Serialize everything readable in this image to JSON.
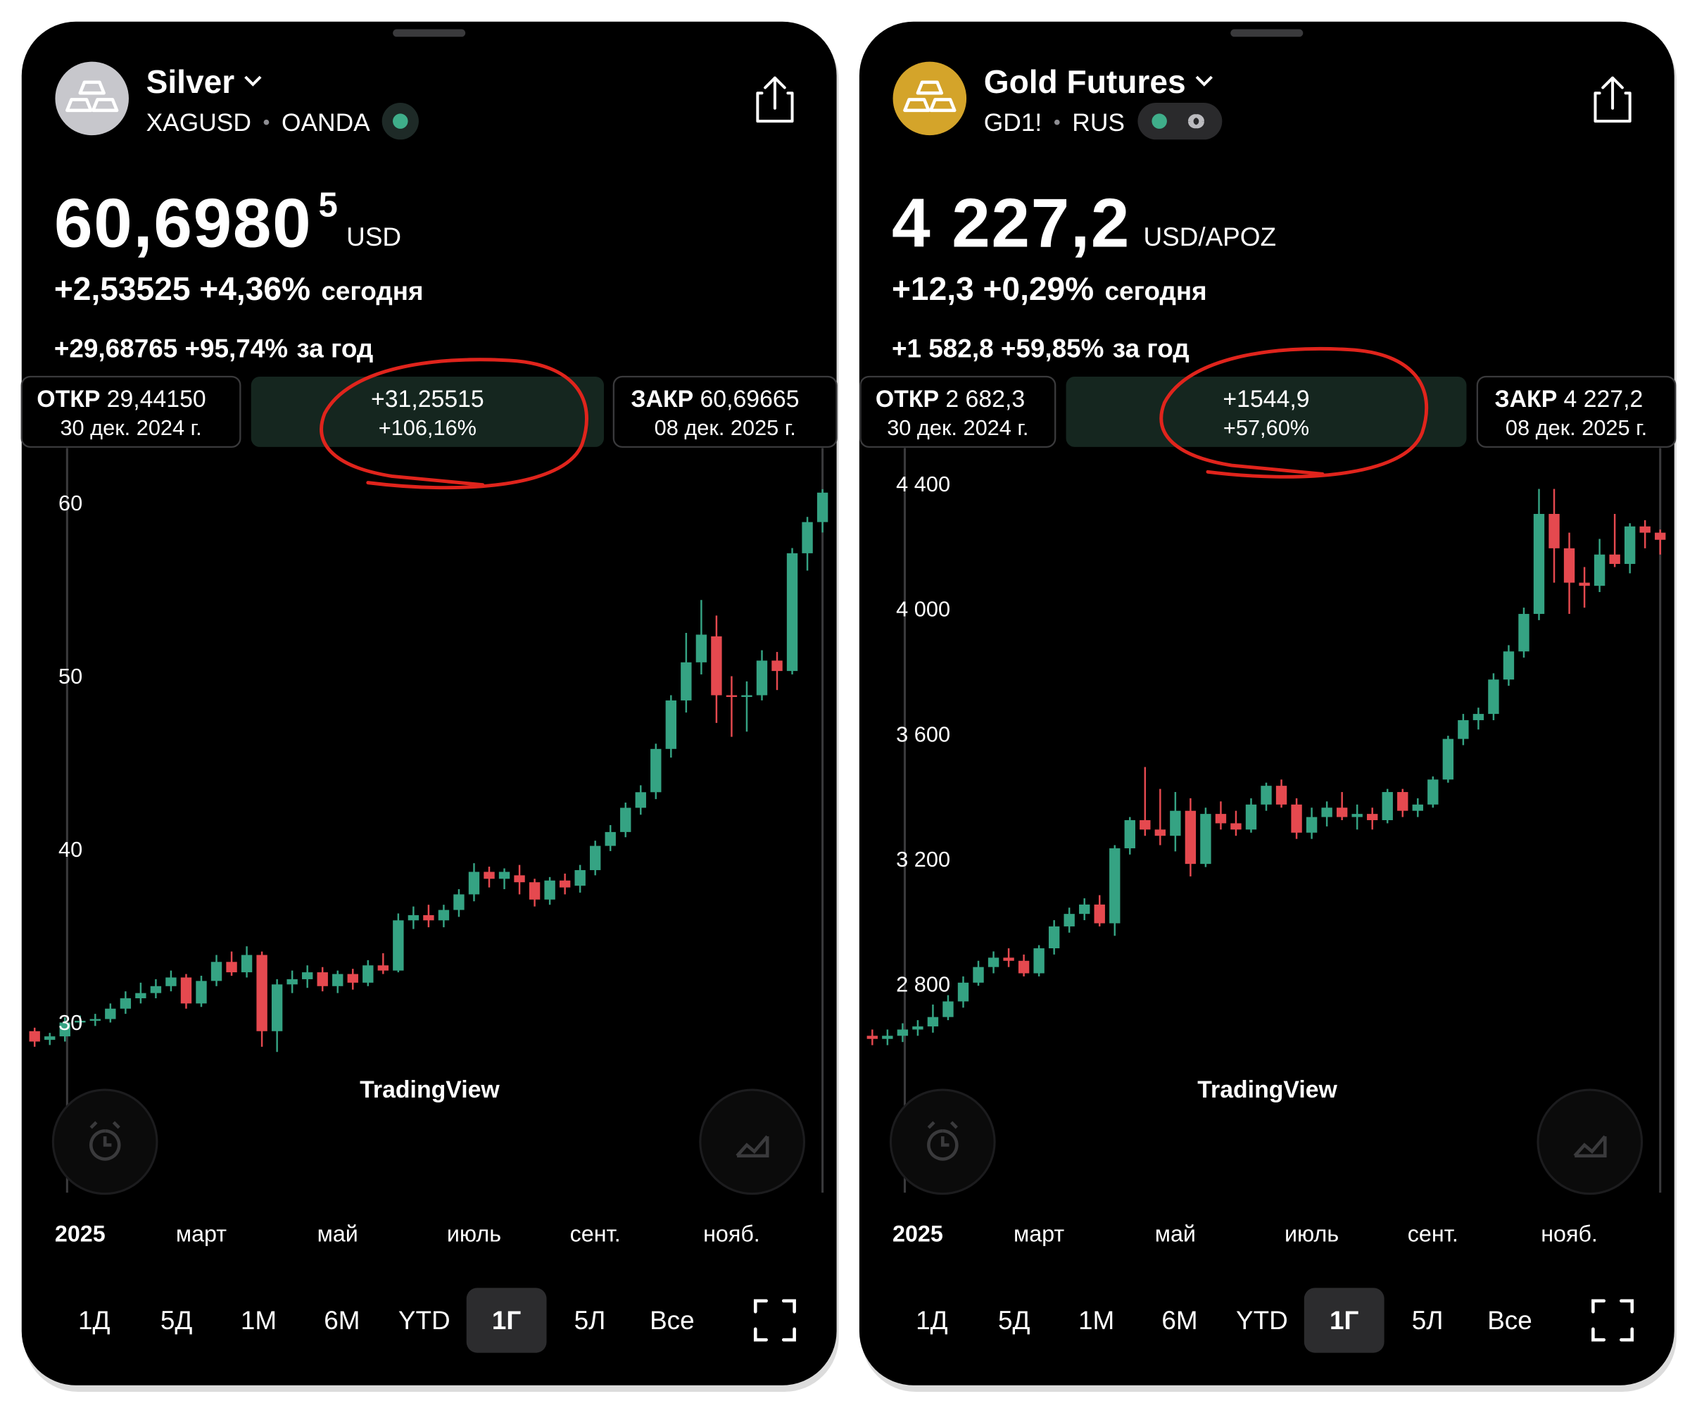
{
  "panels": [
    {
      "title": "Silver",
      "symbol": "XAGUSD",
      "exchange": "OANDA",
      "avatar_color": "#c7c7cc",
      "price": "60,6980",
      "price_sup": "5",
      "currency": "USD",
      "change_today": "+2,53525 +4,36%",
      "today_word": "сегодня",
      "change_year": "+29,68765 +95,74%",
      "year_word": "за год",
      "open_label": "ОТКР",
      "open_value": "29,44150",
      "open_date": "30 дек. 2024 г.",
      "delta": "+31,25515",
      "delta_pct": "+106,16%",
      "close_label": "ЗАКР",
      "close_value": "60,69665",
      "close_color": "#3fae8a",
      "close_date": "08 дек. 2025 г.",
      "watermark": "TradingView",
      "ranges": [
        {
          "label": "1Д"
        },
        {
          "label": "5Д"
        },
        {
          "label": "1М"
        },
        {
          "label": "6М"
        },
        {
          "label": "YTD"
        },
        {
          "label": "1Г",
          "selected": true
        },
        {
          "label": "5Л"
        },
        {
          "label": "Все"
        }
      ]
    },
    {
      "title": "Gold Futures",
      "symbol": "GD1!",
      "exchange": "RUS",
      "avatar_color": "#d4a42a",
      "price": "4 227,2",
      "currency": "USD/APOZ",
      "change_today": "+12,3 +0,29%",
      "today_word": "сегодня",
      "change_year": "+1 582,8 +59,85%",
      "year_word": "за год",
      "open_label": "ОТКР",
      "open_value": "2 682,3",
      "open_date": "30 дек. 2024 г.",
      "delta": "+1544,9",
      "delta_pct": "+57,60%",
      "close_label": "ЗАКР",
      "close_value": "4 227,2",
      "close_color": "#e5494f",
      "close_date": "08 дек. 2025 г.",
      "watermark": "TradingView",
      "ranges": [
        {
          "label": "1Д"
        },
        {
          "label": "5Д"
        },
        {
          "label": "1М"
        },
        {
          "label": "6М"
        },
        {
          "label": "YTD"
        },
        {
          "label": "1Г",
          "selected": true
        },
        {
          "label": "5Л"
        },
        {
          "label": "Все"
        }
      ]
    }
  ],
  "chart_data": [
    {
      "type": "candlestick",
      "up_color": "#35a383",
      "down_color": "#e5494f",
      "categories": [
        null,
        null,
        null,
        "2025",
        null,
        null,
        null,
        null,
        null,
        null,
        null,
        "март",
        null,
        null,
        null,
        null,
        null,
        null,
        null,
        null,
        "май",
        null,
        null,
        null,
        null,
        null,
        null,
        null,
        null,
        "июль",
        null,
        null,
        null,
        null,
        null,
        null,
        null,
        "сент.",
        null,
        null,
        null,
        null,
        null,
        null,
        null,
        null,
        "нояб.",
        null,
        null,
        null,
        null,
        null,
        null
      ],
      "open": [
        29.6,
        29.1,
        29.3,
        30.1,
        30.2,
        30.3,
        30.9,
        31.5,
        31.8,
        32.2,
        32.7,
        31.2,
        32.5,
        33.6,
        33.0,
        34.0,
        29.6,
        32.3,
        32.6,
        33.0,
        32.2,
        32.9,
        32.4,
        33.4,
        33.1,
        36.0,
        36.3,
        36.0,
        36.6,
        37.5,
        38.8,
        38.4,
        38.6,
        38.2,
        37.2,
        38.3,
        38.0,
        38.9,
        40.3,
        41.1,
        42.5,
        43.4,
        45.9,
        48.7,
        50.9,
        52.4,
        49.0,
        48.9,
        49.0,
        51.0,
        50.4,
        57.2,
        59.0
      ],
      "high": [
        29.8,
        29.5,
        30.4,
        30.5,
        30.6,
        31.2,
        31.9,
        32.4,
        32.6,
        33.1,
        32.9,
        32.8,
        34.0,
        34.2,
        34.5,
        34.2,
        32.6,
        33.1,
        33.4,
        33.3,
        33.1,
        33.2,
        33.7,
        34.1,
        36.4,
        36.8,
        36.9,
        36.9,
        37.8,
        39.3,
        39.1,
        39.0,
        39.2,
        38.4,
        38.5,
        38.7,
        39.2,
        40.6,
        41.5,
        42.8,
        43.8,
        46.2,
        49.0,
        52.6,
        54.5,
        53.6,
        50.1,
        49.8,
        51.6,
        51.5,
        57.5,
        59.3,
        60.9
      ],
      "low": [
        28.7,
        28.8,
        29.0,
        29.8,
        29.9,
        30.1,
        30.6,
        31.2,
        31.5,
        31.9,
        30.9,
        31.0,
        32.2,
        32.8,
        32.7,
        28.7,
        28.4,
        31.8,
        32.1,
        31.9,
        31.8,
        32.0,
        32.2,
        32.9,
        33.0,
        35.5,
        35.6,
        35.6,
        36.2,
        37.1,
        37.9,
        37.8,
        37.5,
        36.8,
        36.9,
        37.5,
        37.6,
        38.6,
        40.0,
        40.8,
        42.1,
        43.0,
        45.4,
        48.0,
        50.2,
        47.4,
        46.6,
        46.9,
        48.7,
        49.3,
        50.2,
        56.2,
        58.4
      ],
      "close": [
        29.0,
        29.3,
        30.1,
        30.2,
        30.3,
        30.9,
        31.5,
        31.8,
        32.2,
        32.7,
        31.2,
        32.5,
        33.6,
        33.0,
        34.0,
        29.6,
        32.3,
        32.6,
        33.0,
        32.2,
        32.9,
        32.4,
        33.4,
        33.1,
        36.0,
        36.3,
        36.0,
        36.6,
        37.5,
        38.8,
        38.4,
        38.8,
        38.2,
        37.2,
        38.3,
        37.9,
        38.9,
        40.3,
        41.1,
        42.5,
        43.4,
        45.9,
        48.7,
        50.9,
        52.5,
        49.0,
        48.9,
        49.0,
        51.0,
        50.4,
        57.2,
        59.0,
        60.7
      ],
      "ylim": [
        20.4,
        62.9
      ],
      "yticks": [
        60,
        50,
        40,
        30
      ]
    },
    {
      "type": "candlestick",
      "up_color": "#35a383",
      "down_color": "#e5494f",
      "categories": [
        null,
        null,
        null,
        "2025",
        null,
        null,
        null,
        null,
        null,
        null,
        null,
        "март",
        null,
        null,
        null,
        null,
        null,
        null,
        null,
        null,
        "май",
        null,
        null,
        null,
        null,
        null,
        null,
        null,
        null,
        "июль",
        null,
        null,
        null,
        null,
        null,
        null,
        null,
        "сент.",
        null,
        null,
        null,
        null,
        null,
        null,
        null,
        null,
        "нояб.",
        null,
        null,
        null,
        null,
        null,
        null
      ],
      "open": [
        2640,
        2630,
        2640,
        2660,
        2670,
        2700,
        2750,
        2810,
        2860,
        2890,
        2880,
        2840,
        2920,
        2990,
        3030,
        3060,
        3000,
        3240,
        3330,
        3300,
        3280,
        3360,
        3190,
        3350,
        3320,
        3300,
        3380,
        3440,
        3380,
        3290,
        3340,
        3370,
        3340,
        3350,
        3330,
        3420,
        3360,
        3380,
        3460,
        3590,
        3650,
        3670,
        3780,
        3870,
        3990,
        4310,
        4200,
        4090,
        4080,
        4180,
        4150,
        4270,
        4250
      ],
      "high": [
        2660,
        2660,
        2680,
        2690,
        2740,
        2770,
        2830,
        2880,
        2910,
        2920,
        2900,
        2930,
        3010,
        3050,
        3080,
        3090,
        3250,
        3340,
        3500,
        3430,
        3420,
        3400,
        3370,
        3390,
        3360,
        3400,
        3450,
        3460,
        3400,
        3370,
        3390,
        3420,
        3380,
        3370,
        3430,
        3430,
        3400,
        3470,
        3600,
        3670,
        3690,
        3800,
        3890,
        4010,
        4390,
        4390,
        4250,
        4140,
        4230,
        4310,
        4280,
        4290,
        4260
      ],
      "low": [
        2610,
        2610,
        2620,
        2640,
        2650,
        2690,
        2730,
        2800,
        2840,
        2860,
        2830,
        2830,
        2900,
        2970,
        3010,
        2990,
        2960,
        3220,
        3280,
        3250,
        3230,
        3150,
        3180,
        3300,
        3280,
        3290,
        3360,
        3370,
        3270,
        3270,
        3310,
        3330,
        3300,
        3300,
        3320,
        3340,
        3340,
        3370,
        3450,
        3570,
        3620,
        3650,
        3760,
        3850,
        3970,
        4090,
        3990,
        4010,
        4060,
        4140,
        4120,
        4200,
        4180
      ],
      "close": [
        2630,
        2640,
        2660,
        2670,
        2700,
        2750,
        2810,
        2860,
        2890,
        2880,
        2840,
        2920,
        2990,
        3030,
        3060,
        3000,
        3240,
        3330,
        3300,
        3280,
        3360,
        3190,
        3350,
        3320,
        3300,
        3380,
        3440,
        3380,
        3290,
        3340,
        3370,
        3340,
        3350,
        3330,
        3420,
        3360,
        3380,
        3460,
        3590,
        3650,
        3670,
        3780,
        3870,
        3990,
        4310,
        4200,
        4090,
        4080,
        4180,
        4150,
        4270,
        4250,
        4227.2
      ],
      "ylim": [
        2145,
        4500
      ],
      "yticks": [
        {
          "value": 4400,
          "label": "4 400"
        },
        {
          "value": 4000,
          "label": "4 000"
        },
        {
          "value": 3600,
          "label": "3 600"
        },
        {
          "value": 3200,
          "label": "3 200"
        },
        {
          "value": 2800,
          "label": "2 800"
        }
      ]
    }
  ]
}
